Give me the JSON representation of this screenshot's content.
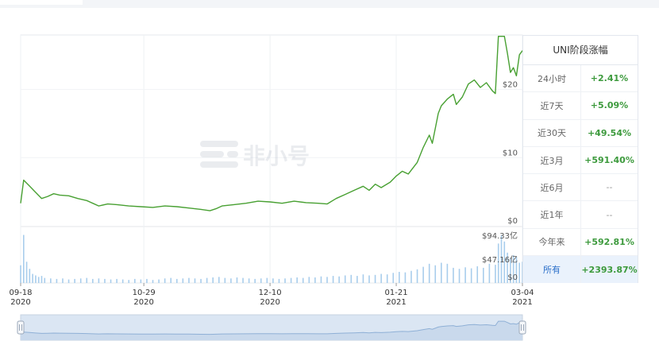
{
  "watermark": "非小号",
  "chart_data": {
    "type": "line",
    "title": "",
    "x_ticks": [
      {
        "date": "2020-09-18",
        "line1": "09-18",
        "line2": "2020"
      },
      {
        "date": "2020-10-29",
        "line1": "10-29",
        "line2": "2020"
      },
      {
        "date": "2020-12-10",
        "line1": "12-10",
        "line2": "2020"
      },
      {
        "date": "2021-01-21",
        "line1": "01-21",
        "line2": "2021"
      },
      {
        "date": "2021-03-04",
        "line1": "03-04",
        "line2": "2021"
      }
    ],
    "x_range": [
      "2020-09-18",
      "2021-03-04"
    ],
    "price_axis": {
      "ylim": [
        0,
        28
      ],
      "ticks": [
        {
          "value": 0,
          "label": "$0"
        },
        {
          "value": 10,
          "label": "$10"
        },
        {
          "value": 20,
          "label": "$20"
        }
      ]
    },
    "volume_axis": {
      "ylim": [
        0,
        110
      ],
      "unit": "亿",
      "ticks": [
        {
          "value": 0,
          "label": "$0"
        },
        {
          "value": 47.16,
          "label": "$47.16亿"
        },
        {
          "value": 94.33,
          "label": "$94.33亿"
        }
      ]
    },
    "price_series": {
      "name": "",
      "points": [
        [
          "2020-09-18",
          3.3
        ],
        [
          "2020-09-19",
          6.7
        ],
        [
          "2020-09-21",
          5.8
        ],
        [
          "2020-09-23",
          4.9
        ],
        [
          "2020-09-25",
          4.0
        ],
        [
          "2020-09-27",
          4.3
        ],
        [
          "2020-09-29",
          4.7
        ],
        [
          "2020-10-01",
          4.5
        ],
        [
          "2020-10-04",
          4.4
        ],
        [
          "2020-10-07",
          4.0
        ],
        [
          "2020-10-10",
          3.7
        ],
        [
          "2020-10-12",
          3.3
        ],
        [
          "2020-10-14",
          2.9
        ],
        [
          "2020-10-17",
          3.2
        ],
        [
          "2020-10-20",
          3.1
        ],
        [
          "2020-10-24",
          2.9
        ],
        [
          "2020-10-28",
          2.8
        ],
        [
          "2020-11-01",
          2.7
        ],
        [
          "2020-11-05",
          2.9
        ],
        [
          "2020-11-09",
          2.8
        ],
        [
          "2020-11-13",
          2.6
        ],
        [
          "2020-11-17",
          2.4
        ],
        [
          "2020-11-20",
          2.2
        ],
        [
          "2020-11-22",
          2.5
        ],
        [
          "2020-11-24",
          2.9
        ],
        [
          "2020-11-28",
          3.1
        ],
        [
          "2020-12-02",
          3.3
        ],
        [
          "2020-12-06",
          3.6
        ],
        [
          "2020-12-10",
          3.5
        ],
        [
          "2020-12-14",
          3.3
        ],
        [
          "2020-12-18",
          3.6
        ],
        [
          "2020-12-22",
          3.4
        ],
        [
          "2020-12-26",
          3.3
        ],
        [
          "2020-12-29",
          3.2
        ],
        [
          "2021-01-01",
          4.0
        ],
        [
          "2021-01-04",
          4.6
        ],
        [
          "2021-01-07",
          5.2
        ],
        [
          "2021-01-10",
          5.8
        ],
        [
          "2021-01-12",
          5.2
        ],
        [
          "2021-01-14",
          6.1
        ],
        [
          "2021-01-16",
          5.6
        ],
        [
          "2021-01-19",
          6.4
        ],
        [
          "2021-01-21",
          7.3
        ],
        [
          "2021-01-23",
          8.0
        ],
        [
          "2021-01-25",
          7.6
        ],
        [
          "2021-01-28",
          9.3
        ],
        [
          "2021-01-30",
          11.5
        ],
        [
          "2021-02-01",
          13.3
        ],
        [
          "2021-02-02",
          12.1
        ],
        [
          "2021-02-04",
          16.5
        ],
        [
          "2021-02-05",
          17.6
        ],
        [
          "2021-02-07",
          18.6
        ],
        [
          "2021-02-09",
          19.3
        ],
        [
          "2021-02-10",
          17.8
        ],
        [
          "2021-02-12",
          18.9
        ],
        [
          "2021-02-14",
          20.8
        ],
        [
          "2021-02-16",
          21.4
        ],
        [
          "2021-02-18",
          20.3
        ],
        [
          "2021-02-20",
          21.0
        ],
        [
          "2021-02-22",
          19.8
        ],
        [
          "2021-02-23",
          19.4
        ],
        [
          "2021-02-24",
          27.8
        ],
        [
          "2021-02-26",
          27.8
        ],
        [
          "2021-02-27",
          25.3
        ],
        [
          "2021-02-28",
          22.5
        ],
        [
          "2021-03-01",
          23.2
        ],
        [
          "2021-03-02",
          22.0
        ],
        [
          "2021-03-03",
          25.1
        ],
        [
          "2021-03-04",
          25.7
        ]
      ]
    },
    "volume_series": {
      "name": "",
      "points": [
        [
          "2020-09-18",
          35
        ],
        [
          "2020-09-19",
          95
        ],
        [
          "2020-09-20",
          42
        ],
        [
          "2020-09-21",
          28
        ],
        [
          "2020-09-22",
          18
        ],
        [
          "2020-09-23",
          15
        ],
        [
          "2020-09-24",
          12
        ],
        [
          "2020-09-25",
          14
        ],
        [
          "2020-09-26",
          10
        ],
        [
          "2020-09-28",
          9
        ],
        [
          "2020-09-30",
          8
        ],
        [
          "2020-10-02",
          9
        ],
        [
          "2020-10-04",
          7
        ],
        [
          "2020-10-06",
          8
        ],
        [
          "2020-10-08",
          9
        ],
        [
          "2020-10-10",
          10
        ],
        [
          "2020-10-12",
          8
        ],
        [
          "2020-10-14",
          9
        ],
        [
          "2020-10-16",
          8
        ],
        [
          "2020-10-18",
          7
        ],
        [
          "2020-10-20",
          8
        ],
        [
          "2020-10-22",
          7
        ],
        [
          "2020-10-24",
          6
        ],
        [
          "2020-10-26",
          8
        ],
        [
          "2020-10-28",
          7
        ],
        [
          "2020-10-30",
          8
        ],
        [
          "2020-11-01",
          6
        ],
        [
          "2020-11-03",
          7
        ],
        [
          "2020-11-05",
          9
        ],
        [
          "2020-11-07",
          10
        ],
        [
          "2020-11-09",
          8
        ],
        [
          "2020-11-11",
          9
        ],
        [
          "2020-11-13",
          10
        ],
        [
          "2020-11-15",
          9
        ],
        [
          "2020-11-17",
          8
        ],
        [
          "2020-11-19",
          10
        ],
        [
          "2020-11-21",
          11
        ],
        [
          "2020-11-23",
          12
        ],
        [
          "2020-11-25",
          10
        ],
        [
          "2020-11-27",
          9
        ],
        [
          "2020-11-29",
          11
        ],
        [
          "2020-12-01",
          10
        ],
        [
          "2020-12-03",
          9
        ],
        [
          "2020-12-05",
          8
        ],
        [
          "2020-12-07",
          9
        ],
        [
          "2020-12-09",
          10
        ],
        [
          "2020-12-11",
          9
        ],
        [
          "2020-12-13",
          8
        ],
        [
          "2020-12-15",
          9
        ],
        [
          "2020-12-17",
          10
        ],
        [
          "2020-12-19",
          11
        ],
        [
          "2020-12-21",
          10
        ],
        [
          "2020-12-23",
          12
        ],
        [
          "2020-12-25",
          11
        ],
        [
          "2020-12-27",
          13
        ],
        [
          "2020-12-29",
          12
        ],
        [
          "2020-12-31",
          14
        ],
        [
          "2021-01-02",
          13
        ],
        [
          "2021-01-04",
          15
        ],
        [
          "2021-01-06",
          16
        ],
        [
          "2021-01-08",
          14
        ],
        [
          "2021-01-10",
          17
        ],
        [
          "2021-01-12",
          15
        ],
        [
          "2021-01-14",
          16
        ],
        [
          "2021-01-16",
          18
        ],
        [
          "2021-01-18",
          17
        ],
        [
          "2021-01-20",
          20
        ],
        [
          "2021-01-22",
          22
        ],
        [
          "2021-01-24",
          21
        ],
        [
          "2021-01-26",
          24
        ],
        [
          "2021-01-28",
          27
        ],
        [
          "2021-01-30",
          32
        ],
        [
          "2021-02-01",
          38
        ],
        [
          "2021-02-03",
          35
        ],
        [
          "2021-02-05",
          40
        ],
        [
          "2021-02-07",
          38
        ],
        [
          "2021-02-09",
          30
        ],
        [
          "2021-02-11",
          28
        ],
        [
          "2021-02-13",
          31
        ],
        [
          "2021-02-15",
          29
        ],
        [
          "2021-02-17",
          33
        ],
        [
          "2021-02-19",
          30
        ],
        [
          "2021-02-21",
          38
        ],
        [
          "2021-02-23",
          36
        ],
        [
          "2021-02-24",
          78
        ],
        [
          "2021-02-25",
          94
        ],
        [
          "2021-02-26",
          82
        ],
        [
          "2021-02-27",
          60
        ],
        [
          "2021-02-28",
          48
        ],
        [
          "2021-03-01",
          55
        ],
        [
          "2021-03-02",
          52
        ],
        [
          "2021-03-03",
          40
        ],
        [
          "2021-03-04",
          42
        ]
      ]
    },
    "line_color": "#48a032",
    "volume_color": "#a8cdec",
    "grid": true
  },
  "performance": {
    "title": "UNI阶段涨幅",
    "rows": [
      {
        "period": "24小时",
        "change": "+2.41%"
      },
      {
        "period": "近7天",
        "change": "+5.09%"
      },
      {
        "period": "近30天",
        "change": "+49.54%"
      },
      {
        "period": "近3月",
        "change": "+591.40%"
      },
      {
        "period": "近6月",
        "change": "--"
      },
      {
        "period": "近1年",
        "change": "--"
      },
      {
        "period": "今年来",
        "change": "+592.81%"
      },
      {
        "period": "所有",
        "change": "+2393.87%"
      }
    ],
    "active_row": 7
  },
  "colors": {
    "positive": "#3d9a3d",
    "active_bg": "#eaf2fc",
    "active_text": "#2a6fc9"
  }
}
